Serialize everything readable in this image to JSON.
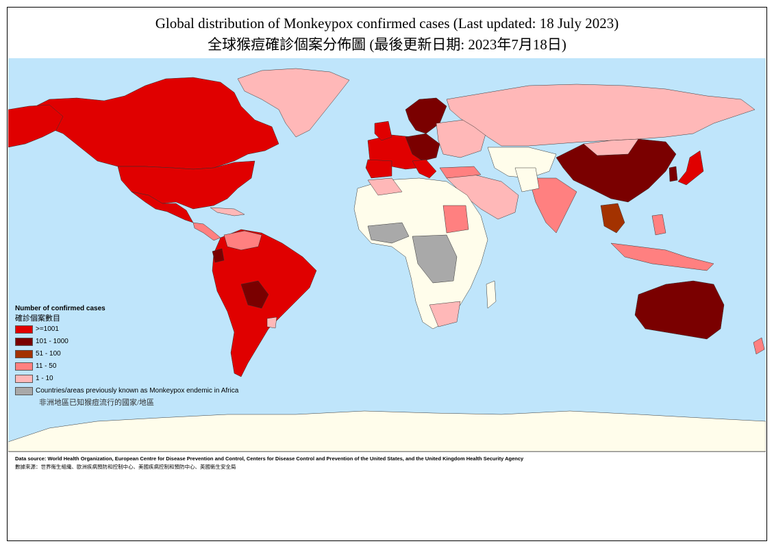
{
  "title_en": "Global distribution of Monkeypox confirmed cases (Last updated: 18 July 2023)",
  "title_zh": "全球猴痘確診個案分佈圖 (最後更新日期: 2023年7月18日)",
  "legend": {
    "title": "Number of confirmed cases",
    "title_zh": "確診個案數目",
    "items": [
      {
        "label": ">=1001",
        "color": "#e00000"
      },
      {
        "label": "101 - 1000",
        "color": "#7a0000"
      },
      {
        "label": "51 - 100",
        "color": "#a33200"
      },
      {
        "label": "11 - 50",
        "color": "#ff8080"
      },
      {
        "label": "1 - 10",
        "color": "#ffb8b8"
      },
      {
        "label": "Countries/areas previously known as Monkeypox endemic in Africa",
        "label_zh": "非洲地區已知猴痘流行的國家/地區",
        "color": "#a9a9a9"
      }
    ]
  },
  "colors": {
    "ocean": "#bfe5fb",
    "no_data": "#fffdeb",
    "ge1001": "#e00000",
    "c101_1000": "#7a0000",
    "c51_100": "#a33200",
    "c11_50": "#ff8080",
    "c1_10": "#ffb8b8",
    "endemic": "#a9a9a9"
  },
  "source_en": "Data source: World Health Organization, European Centre for Disease Prevention and Control, Centers for Disease Control and Prevention of the United States, and the United Kingdom Health Security Agency",
  "source_zh": "數據來源：世界衞生組織、歐洲疾病預防和控制中心、美國疾病控制和預防中心、英國衞生安全局"
}
